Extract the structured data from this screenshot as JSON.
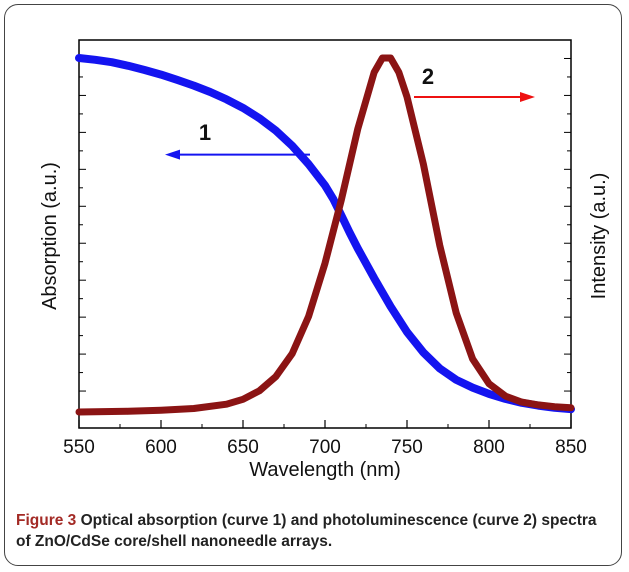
{
  "chart_data": {
    "type": "line",
    "xlabel": "Wavelength (nm)",
    "ylabel_left": "Absorption (a.u.)",
    "ylabel_right": "Intensity (a.u.)",
    "xlim": [
      550,
      850
    ],
    "xticks": [
      "550",
      "600",
      "650",
      "700",
      "750",
      "800",
      "850"
    ],
    "ylim": [
      0,
      1.1
    ],
    "grid": false,
    "series": [
      {
        "label": "1",
        "color": "#1414f0",
        "axis": "left",
        "x": [
          550,
          560,
          570,
          580,
          590,
          600,
          610,
          620,
          630,
          640,
          650,
          660,
          670,
          680,
          690,
          700,
          705,
          710,
          715,
          720,
          725,
          730,
          740,
          750,
          760,
          770,
          780,
          790,
          800,
          810,
          820,
          830,
          840,
          850
        ],
        "y": [
          1.0,
          0.995,
          0.988,
          0.978,
          0.966,
          0.953,
          0.938,
          0.922,
          0.904,
          0.883,
          0.859,
          0.83,
          0.795,
          0.752,
          0.7,
          0.64,
          0.602,
          0.555,
          0.507,
          0.462,
          0.42,
          0.378,
          0.298,
          0.226,
          0.168,
          0.123,
          0.091,
          0.069,
          0.051,
          0.037,
          0.026,
          0.018,
          0.012,
          0.008
        ]
      },
      {
        "label": "2",
        "color": "#8b1414",
        "axis": "right",
        "x": [
          550,
          580,
          600,
          620,
          640,
          650,
          660,
          670,
          680,
          690,
          700,
          710,
          720,
          730,
          735,
          740,
          745,
          750,
          760,
          770,
          780,
          790,
          800,
          810,
          820,
          830,
          840,
          850
        ],
        "y": [
          0.0,
          0.002,
          0.005,
          0.01,
          0.022,
          0.036,
          0.06,
          0.1,
          0.165,
          0.27,
          0.42,
          0.6,
          0.8,
          0.96,
          1.0,
          1.0,
          0.96,
          0.89,
          0.7,
          0.47,
          0.28,
          0.15,
          0.08,
          0.045,
          0.028,
          0.02,
          0.015,
          0.012
        ]
      }
    ],
    "annotations": [
      {
        "text": "1",
        "arrow": "left",
        "color": "#1414f0"
      },
      {
        "text": "2",
        "arrow": "right",
        "color": "#ee1111"
      }
    ]
  },
  "caption": {
    "lead": "Figure 3",
    "text": " Optical absorption (curve 1) and photoluminescence (curve 2) spectra of ZnO/CdSe core/shell nanoneedle arrays."
  }
}
